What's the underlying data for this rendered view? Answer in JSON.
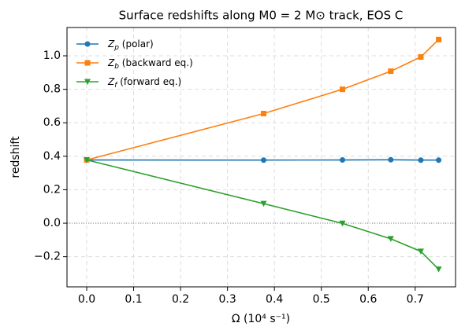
{
  "chart_data": {
    "type": "line",
    "title": "Surface redshifts along M0 = 2 M⊙ track, EOS C",
    "x_label": "Ω (10⁴ s⁻¹)",
    "y_label": "redshift",
    "x": [
      0,
      0.377,
      0.545,
      0.648,
      0.712,
      0.75
    ],
    "series": [
      {
        "name": "Zp (polar)",
        "color": "#1f77b4",
        "marker": "circle",
        "values": [
          0.378,
          0.377,
          0.378,
          0.379,
          0.377,
          0.377
        ]
      },
      {
        "name": "Zb (backward eq.)",
        "color": "#ff7f0e",
        "marker": "square",
        "values": [
          0.378,
          0.655,
          0.8,
          0.908,
          0.993,
          1.097
        ]
      },
      {
        "name": "Zf (forward eq.)",
        "color": "#2ca02c",
        "marker": "triangle-down",
        "values": [
          0.378,
          0.117,
          -0.001,
          -0.093,
          -0.168,
          -0.275
        ]
      }
    ],
    "xlim": [
      -0.042,
      0.786
    ],
    "ylim": [
      -0.38,
      1.169
    ],
    "xticks": [
      {
        "value": 0,
        "label": "0.0"
      },
      {
        "value": 0.1,
        "label": "0.1"
      },
      {
        "value": 0.2,
        "label": "0.2"
      },
      {
        "value": 0.3,
        "label": "0.3"
      },
      {
        "value": 0.4,
        "label": "0.4"
      },
      {
        "value": 0.5,
        "label": "0.5"
      },
      {
        "value": 0.6,
        "label": "0.6"
      },
      {
        "value": 0.7,
        "label": "0.7"
      }
    ],
    "yticks": [
      {
        "value": -0.2,
        "label": "−0.2"
      },
      {
        "value": 0,
        "label": "0.0"
      },
      {
        "value": 0.2,
        "label": "0.2"
      },
      {
        "value": 0.4,
        "label": "0.4"
      },
      {
        "value": 0.6,
        "label": "0.6"
      },
      {
        "value": 0.8,
        "label": "0.8"
      },
      {
        "value": 1,
        "label": "1.0"
      }
    ],
    "hline": 0,
    "grid": true,
    "legend": "upper-left"
  }
}
